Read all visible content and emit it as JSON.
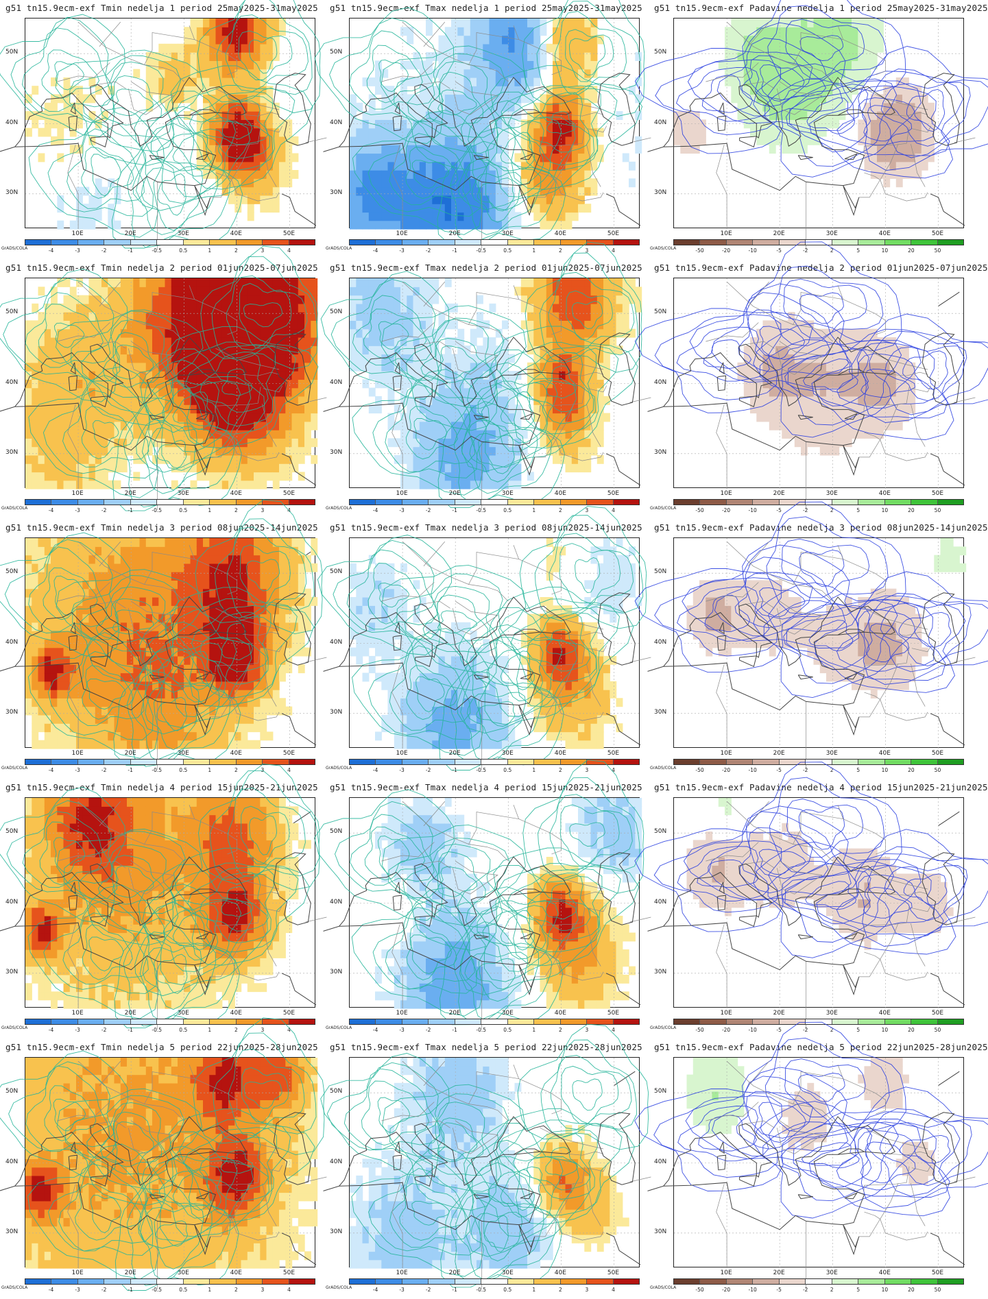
{
  "titles": [
    [
      "g51 tn15.9ecm-exf Tmin nedelja 1 period 25may2025-31may2025",
      "g51 tn15.9ecm-exf Tmax nedelja 1 period 25may2025-31may2025",
      "g51 tn15.9ecm-exf Padavine nedelja 1 period 25may2025-31may2025"
    ],
    [
      "g51 tn15.9ecm-exf Tmin nedelja 2 period 01jun2025-07jun2025",
      "g51 tn15.9ecm-exf Tmax nedelja 2 period 01jun2025-07jun2025",
      "g51 tn15.9ecm-exf Padavine nedelja 2 period 01jun2025-07jun2025"
    ],
    [
      "g51 tn15.9ecm-exf Tmin nedelja 3 period 08jun2025-14jun2025",
      "g51 tn15.9ecm-exf Tmax nedelja 3 period 08jun2025-14jun2025",
      "g51 tn15.9ecm-exf Padavine nedelja 3 period 08jun2025-14jun2025"
    ],
    [
      "g51 tn15.9ecm-exf Tmin nedelja 4 period 15jun2025-21jun2025",
      "g51 tn15.9ecm-exf Tmax nedelja 4 period 15jun2025-21jun2025",
      "g51 tn15.9ecm-exf Padavine nedelja 4 period 15jun2025-21jun2025"
    ],
    [
      "g51 tn15.9ecm-exf Tmin nedelja 5 period 22jun2025-28jun2025",
      "g51 tn15.9ecm-exf Tmax nedelja 5 period 22jun2025-28jun2025",
      "g51 tn15.9ecm-exf Padavine nedelja 5 period 22jun2025-28jun2025"
    ]
  ],
  "lat_labels": [
    "50N",
    "40N",
    "30N"
  ],
  "lon_labels": [
    "10E",
    "20E",
    "30E",
    "40E",
    "50E"
  ],
  "grads_label": "GrADS/COLA",
  "temp_scale": {
    "labels": [
      "-4",
      "-3",
      "-2",
      "-1",
      "-0.5",
      "0.5",
      "1",
      "2",
      "3",
      "4"
    ],
    "colors": [
      "#1e6fd6",
      "#3d8ce6",
      "#6aaef0",
      "#9fcff7",
      "#cfe9fb",
      "#ffffff",
      "#fbe99a",
      "#f8c24e",
      "#f29a2a",
      "#e6531c",
      "#b5130f"
    ]
  },
  "precip_scale": {
    "labels": [
      "-50",
      "-20",
      "-10",
      "-5",
      "-2",
      "2",
      "5",
      "10",
      "20",
      "50"
    ],
    "colors": [
      "#6b3e2e",
      "#8e5b47",
      "#b08574",
      "#cfada0",
      "#ead6cd",
      "#ffffff",
      "#d8f5cf",
      "#a8eb9a",
      "#72dc63",
      "#3fc43a",
      "#1f9e22"
    ]
  },
  "map_colors": {
    "land_line": "#444444",
    "border_line": "#8a8a8a",
    "temp_contour": "#25b59a",
    "precip_contour": "#2a3fe0",
    "grid": "#aaaaaa"
  }
}
